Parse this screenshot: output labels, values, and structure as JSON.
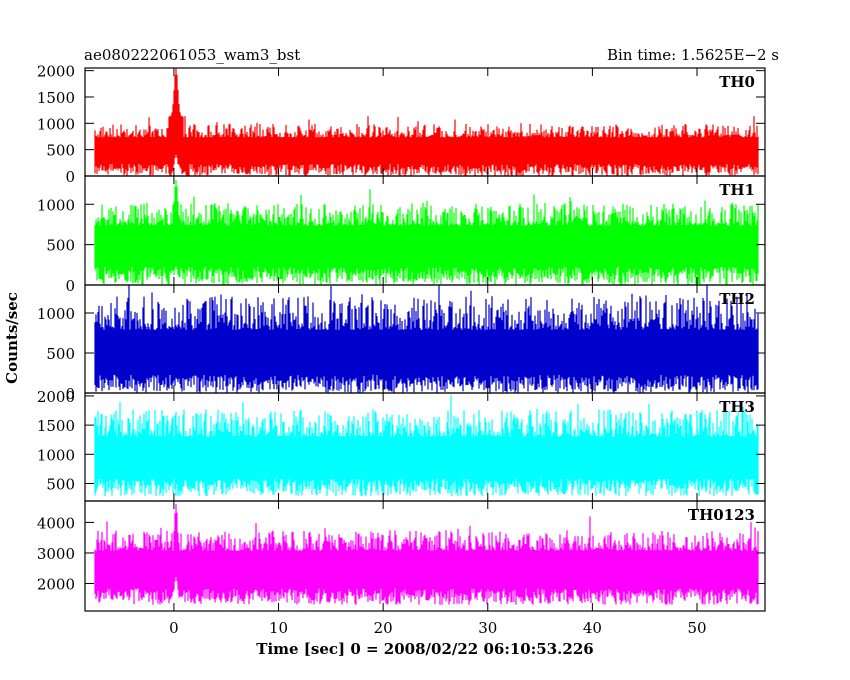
{
  "header": {
    "left_title": "ae080222061053_wam3_bst",
    "right_title": "Bin time: 1.5625E−2 s"
  },
  "chart_data": {
    "type": "line",
    "title": "ae080222061053_wam3_bst",
    "subtitle": "Bin time: 1.5625E−2 s",
    "xlabel": "Time [sec] 0 = 2008/02/22 06:10:53.226",
    "ylabel": "Counts/sec",
    "xlim": [
      -8.5,
      56.5
    ],
    "x_ticks": [
      0,
      10,
      20,
      30,
      40,
      50
    ],
    "data_x_range": [
      -7.5,
      55.8
    ],
    "grid": false,
    "panels": [
      {
        "name": "TH0",
        "color": "#ff0000",
        "ylim": [
          0,
          2050
        ],
        "y_ticks": [
          0,
          500,
          1000,
          1500,
          2000
        ],
        "baseline_mean": 650,
        "noise_spread": 340,
        "min_floor": 0,
        "burst": {
          "t": 0.2,
          "peak": 2050,
          "min_level": 400
        }
      },
      {
        "name": "TH1",
        "color": "#00ff00",
        "ylim": [
          0,
          1350
        ],
        "y_ticks": [
          0,
          500,
          1000
        ],
        "baseline_mean": 640,
        "noise_spread": 380,
        "min_floor": 0,
        "burst": {
          "t": 0.2,
          "peak": 1300,
          "min_level": 230
        }
      },
      {
        "name": "TH2",
        "color": "#0000cd",
        "ylim": [
          0,
          1350
        ],
        "y_ticks": [
          0,
          500,
          1000
        ],
        "baseline_mean": 650,
        "noise_spread": 560,
        "min_floor": 0,
        "burst": null
      },
      {
        "name": "TH3",
        "color": "#00ffff",
        "ylim": [
          200,
          2050
        ],
        "y_ticks": [
          500,
          1000,
          1500,
          2000
        ],
        "baseline_mean": 1150,
        "noise_spread": 620,
        "min_floor": 280,
        "burst": null
      },
      {
        "name": "TH0123",
        "color": "#ff00ff",
        "ylim": [
          1100,
          4700
        ],
        "y_ticks": [
          2000,
          3000,
          4000
        ],
        "baseline_mean": 2850,
        "noise_spread": 900,
        "min_floor": 1300,
        "burst": {
          "t": 0.2,
          "peak": 4600,
          "min_level": 2200
        }
      }
    ]
  }
}
